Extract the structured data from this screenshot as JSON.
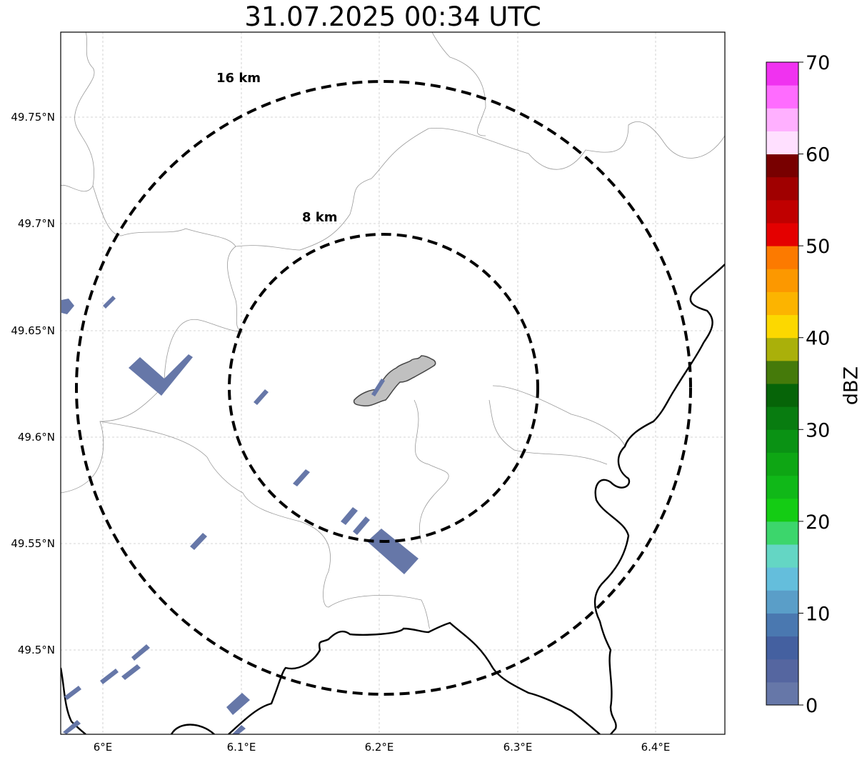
{
  "title": "31.07.2025 00:34 UTC",
  "map": {
    "latitude_labels": [
      "49.75°N",
      "49.7°N",
      "49.65°N",
      "49.6°N",
      "49.55°N",
      "49.5°N"
    ],
    "longitude_labels": [
      "6°E",
      "6.1°E",
      "6.2°E",
      "6.3°E",
      "6.4°E"
    ],
    "range_rings": [
      {
        "label": "16 km",
        "radius_km": 16
      },
      {
        "label": "8 km",
        "radius_km": 8
      }
    ],
    "reflectivity_color": "#6677a8",
    "city_fill_color": "#c0c0c0",
    "gridlines": "dashed",
    "borders": [
      "national",
      "municipal"
    ]
  },
  "colorbar": {
    "label": "dBZ",
    "ticks": [
      "0",
      "10",
      "20",
      "30",
      "40",
      "50",
      "60",
      "70"
    ],
    "min": 0,
    "max": 70,
    "step": 2.5,
    "colors": [
      "#6677a8",
      "#5566a0",
      "#4460a0",
      "#4a78b0",
      "#5a9ec8",
      "#64bedc",
      "#64d6c4",
      "#3cd66c",
      "#14cc14",
      "#10b818",
      "#0ea614",
      "#0a9214",
      "#087c10",
      "#066408",
      "#457a0a",
      "#aab00a",
      "#fcd800",
      "#fcb400",
      "#fc9800",
      "#fc7a00",
      "#e40000",
      "#c00000",
      "#a00000",
      "#780000",
      "#ffe0ff",
      "#ffb0ff",
      "#ff6cff",
      "#f032f0"
    ]
  }
}
